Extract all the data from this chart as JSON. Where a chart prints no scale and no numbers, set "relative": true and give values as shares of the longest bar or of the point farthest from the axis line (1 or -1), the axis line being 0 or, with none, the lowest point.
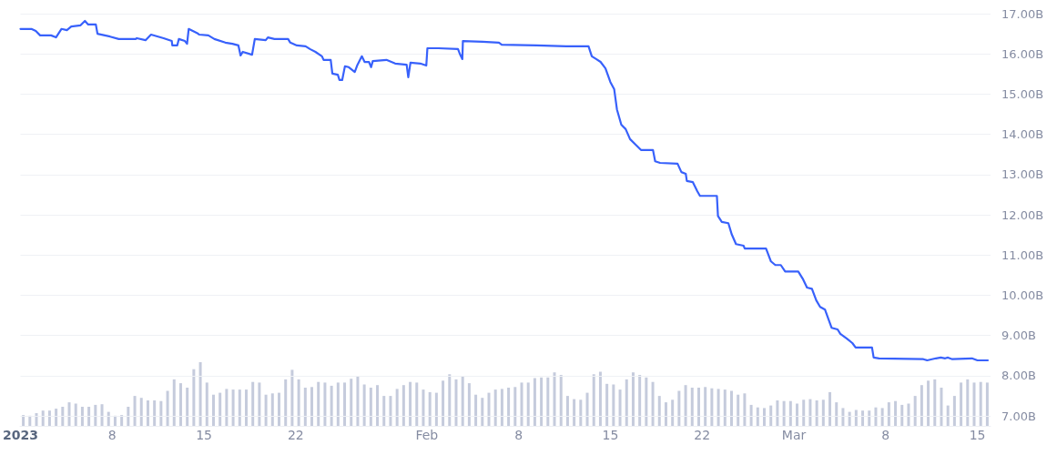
{
  "chart_data": [
    {
      "type": "line",
      "color": "#3861fb",
      "grid": "y",
      "xlim": [
        "2023-01-01",
        "2023-03-16"
      ],
      "xticks": [
        {
          "value": "2023-01-01",
          "label": "2023"
        },
        {
          "value": "2023-01-08",
          "label": "8"
        },
        {
          "value": "2023-01-15",
          "label": "15"
        },
        {
          "value": "2023-01-22",
          "label": "22"
        },
        {
          "value": "2023-02-01",
          "label": "Feb"
        },
        {
          "value": "2023-02-08",
          "label": "8"
        },
        {
          "value": "2023-02-15",
          "label": "15"
        },
        {
          "value": "2023-02-22",
          "label": "22"
        },
        {
          "value": "2023-03-01",
          "label": "Mar"
        },
        {
          "value": "2023-03-08",
          "label": "8"
        },
        {
          "value": "2023-03-15",
          "label": "15"
        }
      ],
      "ylim": [
        7,
        17
      ],
      "yticks": [
        {
          "value": 7,
          "label": "7.00B"
        },
        {
          "value": 8,
          "label": "8.00B"
        },
        {
          "value": 9,
          "label": "9.00B"
        },
        {
          "value": 10,
          "label": "10.00B"
        },
        {
          "value": 11,
          "label": "11.00B"
        },
        {
          "value": 12,
          "label": "12.00B"
        },
        {
          "value": 13,
          "label": "13.00B"
        },
        {
          "value": 14,
          "label": "14.00B"
        },
        {
          "value": 15,
          "label": "15.00B"
        },
        {
          "value": 16,
          "label": "16.00B"
        },
        {
          "value": 17,
          "label": "17.00B"
        }
      ],
      "x": [
        "2023-01-01T00:00",
        "2023-01-01T20:00",
        "2023-01-02T04:00",
        "2023-01-02T12:00",
        "2023-01-03T08:00",
        "2023-01-03T17:00",
        "2023-01-04T03:00",
        "2023-01-04T13:00",
        "2023-01-04T21:00",
        "2023-01-05T14:00",
        "2023-01-05T22:00",
        "2023-01-06T04:00",
        "2023-01-06T18:00",
        "2023-01-06T21:00",
        "2023-01-07T20:00",
        "2023-01-08T12:00",
        "2023-01-09T19:00",
        "2023-01-09T21:00",
        "2023-01-10T13:00",
        "2023-01-10T23:00",
        "2023-01-11T22:00",
        "2023-01-12T13:00",
        "2023-01-12T14:00",
        "2023-01-12T23:00",
        "2023-01-13T02:00",
        "2023-01-13T13:00",
        "2023-01-13T17:00",
        "2023-01-13T20:00",
        "2023-01-14T11:00",
        "2023-01-14T15:00",
        "2023-01-15T08:00",
        "2023-01-15T19:00",
        "2023-01-16T15:00",
        "2023-01-17T04:00",
        "2023-01-17T15:00",
        "2023-01-17T19:00",
        "2023-01-17T23:00",
        "2023-01-18T16:00",
        "2023-01-18T21:00",
        "2023-01-19T17:00",
        "2023-01-19T21:00",
        "2023-01-20T09:00",
        "2023-01-21T10:00",
        "2023-01-21T14:00",
        "2023-01-22T02:00",
        "2023-01-22T18:00",
        "2023-01-23T02:00",
        "2023-01-23T12:00",
        "2023-01-24T00:00",
        "2023-01-24T03:00",
        "2023-01-24T16:00",
        "2023-01-24T19:00",
        "2023-01-25T05:00",
        "2023-01-25T08:00",
        "2023-01-25T13:00",
        "2023-01-25T18:00",
        "2023-01-26T01:00",
        "2023-01-26T12:00",
        "2023-01-26T17:00",
        "2023-01-27T01:00",
        "2023-01-27T06:00",
        "2023-01-27T14:00",
        "2023-01-27T18:00",
        "2023-01-27T21:00",
        "2023-01-28T22:00",
        "2023-01-29T14:00",
        "2023-01-30T11:00",
        "2023-01-30T14:00",
        "2023-01-30T18:00",
        "2023-01-31T12:00",
        "2023-01-31T23:00",
        "2023-02-01T01:00",
        "2023-02-01T21:00",
        "2023-02-03T09:00",
        "2023-02-03T13:00",
        "2023-02-03T17:00",
        "2023-02-03T18:00",
        "2023-02-05T06:00",
        "2023-02-06T12:00",
        "2023-02-06T17:00",
        "2023-02-09T09:00",
        "2023-02-11T15:00",
        "2023-02-13T08:00",
        "2023-02-13T14:00",
        "2023-02-13T22:00",
        "2023-02-14T06:00",
        "2023-02-14T15:00",
        "2023-02-15T00:00",
        "2023-02-15T07:00",
        "2023-02-15T12:00",
        "2023-02-15T20:00",
        "2023-02-16T04:00",
        "2023-02-16T12:00",
        "2023-02-17T00:00",
        "2023-02-17T08:00",
        "2023-02-18T06:00",
        "2023-02-18T10:00",
        "2023-02-18T19:00",
        "2023-02-20T03:00",
        "2023-02-20T10:00",
        "2023-02-20T18:00",
        "2023-02-20T20:00",
        "2023-02-21T07:00",
        "2023-02-21T15:00",
        "2023-02-21T20:00",
        "2023-02-23T03:00",
        "2023-02-23T05:00",
        "2023-02-23T12:00",
        "2023-02-24T00:00",
        "2023-02-24T06:00",
        "2023-02-24T14:00",
        "2023-02-25T04:00",
        "2023-02-25T06:00",
        "2023-02-26T21:00",
        "2023-02-27T06:00",
        "2023-02-27T14:00",
        "2023-02-28T00:00",
        "2023-02-28T08:00",
        "2023-03-01T08:00",
        "2023-03-01T17:00",
        "2023-03-02T00:00",
        "2023-03-02T09:00",
        "2023-03-02T17:00",
        "2023-03-03T00:00",
        "2023-03-03T09:00",
        "2023-03-03T21:00",
        "2023-03-04T08:00",
        "2023-03-04T13:00",
        "2023-03-05T01:00",
        "2023-03-05T11:00",
        "2023-03-05T17:00",
        "2023-03-06T23:00",
        "2023-03-07T02:00",
        "2023-03-07T12:00",
        "2023-03-10T21:00",
        "2023-03-11T04:00",
        "2023-03-11T20:00",
        "2023-03-12T05:00",
        "2023-03-12T13:00",
        "2023-03-12T18:00",
        "2023-03-13T02:00",
        "2023-03-14T14:00",
        "2023-03-15T00:00",
        "2023-03-15T19:00"
      ],
      "values": [
        16.62,
        16.62,
        16.57,
        16.46,
        16.46,
        16.41,
        16.62,
        16.59,
        16.68,
        16.71,
        16.82,
        16.73,
        16.73,
        16.5,
        16.43,
        16.37,
        16.37,
        16.39,
        16.34,
        16.48,
        16.39,
        16.32,
        16.21,
        16.21,
        16.37,
        16.32,
        16.25,
        16.62,
        16.52,
        16.48,
        16.46,
        16.37,
        16.28,
        16.25,
        16.21,
        15.96,
        16.05,
        15.98,
        16.37,
        16.34,
        16.41,
        16.37,
        16.37,
        16.28,
        16.21,
        16.19,
        16.12,
        16.05,
        15.94,
        15.85,
        15.85,
        15.51,
        15.48,
        15.35,
        15.35,
        15.69,
        15.67,
        15.55,
        15.73,
        15.94,
        15.8,
        15.8,
        15.67,
        15.82,
        15.85,
        15.76,
        15.73,
        15.42,
        15.78,
        15.76,
        15.71,
        16.14,
        16.14,
        16.12,
        15.98,
        15.87,
        16.32,
        16.3,
        16.28,
        16.23,
        16.21,
        16.19,
        16.19,
        15.94,
        15.87,
        15.8,
        15.64,
        15.3,
        15.12,
        14.62,
        14.24,
        14.13,
        13.88,
        13.72,
        13.61,
        13.61,
        13.33,
        13.29,
        13.27,
        13.06,
        13.02,
        12.84,
        12.81,
        12.59,
        12.47,
        12.47,
        11.97,
        11.82,
        11.79,
        11.52,
        11.27,
        11.23,
        11.16,
        11.16,
        10.84,
        10.75,
        10.75,
        10.59,
        10.59,
        10.39,
        10.19,
        10.16,
        9.87,
        9.71,
        9.64,
        9.19,
        9.15,
        9.04,
        8.92,
        8.81,
        8.7,
        8.7,
        8.45,
        8.43,
        8.41,
        8.38,
        8.43,
        8.45,
        8.43,
        8.45,
        8.41,
        8.43,
        8.38,
        8.38
      ]
    },
    {
      "type": "bar",
      "relative": true,
      "color": "#c5cbdc",
      "categories": [
        null,
        null,
        null,
        null,
        null,
        null,
        null,
        null,
        null,
        null,
        null,
        null,
        null,
        null,
        null,
        null,
        null,
        null,
        null,
        null,
        null,
        null,
        null,
        null,
        null,
        null,
        null,
        null,
        null,
        null,
        null,
        null,
        null,
        null,
        null,
        null,
        null,
        null,
        null,
        null,
        null,
        null,
        null,
        null,
        null,
        null,
        null,
        null,
        null,
        null,
        null,
        null,
        null,
        null,
        null,
        null,
        null,
        null,
        null,
        null,
        null,
        null,
        null,
        null,
        null,
        null,
        null,
        null,
        null,
        null,
        null,
        null,
        null,
        null,
        null,
        null,
        null,
        null,
        null,
        null,
        null,
        null,
        null,
        null,
        null,
        null,
        null,
        null,
        null,
        null,
        null,
        null,
        null,
        null,
        null,
        null,
        null,
        null,
        null,
        null,
        null,
        null,
        null,
        null,
        null,
        null,
        null,
        null,
        null,
        null,
        null,
        null,
        null,
        null,
        null,
        null,
        null,
        null,
        null,
        null,
        null,
        null,
        null,
        null,
        null,
        null,
        null,
        null,
        null,
        null,
        null,
        null,
        null,
        null,
        null,
        null,
        null,
        null,
        null,
        null,
        null,
        null,
        null,
        null,
        null,
        null,
        null,
        null
      ],
      "values": [
        0.17,
        0.16,
        0.2,
        0.24,
        0.24,
        0.27,
        0.3,
        0.37,
        0.35,
        0.3,
        0.3,
        0.33,
        0.34,
        0.22,
        0.16,
        0.17,
        0.3,
        0.47,
        0.44,
        0.4,
        0.4,
        0.39,
        0.55,
        0.73,
        0.67,
        0.6,
        0.89,
        1.0,
        0.68,
        0.49,
        0.52,
        0.58,
        0.57,
        0.57,
        0.57,
        0.69,
        0.68,
        0.49,
        0.51,
        0.52,
        0.73,
        0.88,
        0.73,
        0.6,
        0.61,
        0.69,
        0.68,
        0.63,
        0.68,
        0.68,
        0.74,
        0.78,
        0.65,
        0.6,
        0.64,
        0.47,
        0.47,
        0.58,
        0.64,
        0.69,
        0.68,
        0.57,
        0.53,
        0.52,
        0.71,
        0.81,
        0.73,
        0.78,
        0.67,
        0.49,
        0.44,
        0.52,
        0.57,
        0.58,
        0.6,
        0.61,
        0.68,
        0.68,
        0.75,
        0.76,
        0.76,
        0.84,
        0.8,
        0.47,
        0.42,
        0.41,
        0.52,
        0.81,
        0.85,
        0.66,
        0.65,
        0.57,
        0.73,
        0.84,
        0.8,
        0.76,
        0.69,
        0.47,
        0.37,
        0.41,
        0.55,
        0.64,
        0.6,
        0.6,
        0.61,
        0.59,
        0.58,
        0.57,
        0.55,
        0.49,
        0.51,
        0.33,
        0.29,
        0.28,
        0.32,
        0.4,
        0.39,
        0.39,
        0.35,
        0.41,
        0.42,
        0.4,
        0.41,
        0.53,
        0.37,
        0.28,
        0.22,
        0.25,
        0.24,
        0.24,
        0.29,
        0.28,
        0.37,
        0.39,
        0.33,
        0.35,
        0.47,
        0.64,
        0.71,
        0.73,
        0.6,
        0.32,
        0.47,
        0.68,
        0.73,
        0.68,
        0.69,
        0.68
      ]
    }
  ]
}
